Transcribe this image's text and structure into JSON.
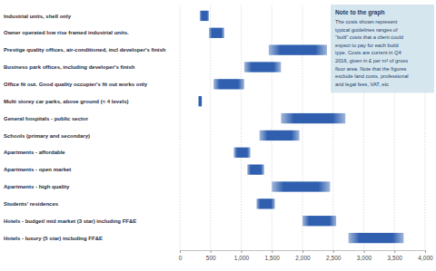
{
  "chart_data": {
    "type": "bar",
    "orientation": "horizontal",
    "categories": [
      "Industrial units, shell only",
      "Owner operated low rise framed industrial units.",
      "Prestige quality offices,  air-conditioned, incl developer's finish",
      "Business park offices, including developer's finish",
      "Office fit out.  Good quality occupier's fit out works only",
      "Multi storey car parks, above ground (< 4 levels)",
      "General hospitals - public sector",
      "Schools (primary and secondary)",
      "Apartments - affordable",
      "Apartments - open market",
      "Apartments - high quality",
      "Students' residences",
      "Hotels - budget/ mid market (3 star) including FF&E",
      "Hotels - luxury (5 star) including FF&E"
    ],
    "values": [
      [
        325,
        475
      ],
      [
        475,
        725
      ],
      [
        1450,
        2400
      ],
      [
        1050,
        1650
      ],
      [
        550,
        1050
      ],
      [
        300,
        360
      ],
      [
        1650,
        2700
      ],
      [
        1300,
        1950
      ],
      [
        880,
        1150
      ],
      [
        1100,
        1375
      ],
      [
        1500,
        2450
      ],
      [
        1250,
        1550
      ],
      [
        2000,
        2550
      ],
      [
        2750,
        3650
      ]
    ],
    "color": "#2f5fae",
    "xlim": [
      0,
      4000
    ],
    "xticks": [
      0,
      500,
      {
        "value": 1000,
        "label": "1,000"
      },
      {
        "value": 1500,
        "label": "1,500"
      },
      {
        "value": 2000,
        "label": "2,000"
      },
      {
        "value": 2500,
        "label": "2,500"
      },
      {
        "value": 3000,
        "label": "3,000"
      },
      {
        "value": 3500,
        "label": "3,500"
      },
      {
        "value": 4000,
        "label": "4,000"
      }
    ],
    "grid": true,
    "annotation": {
      "title": "Note to the graph",
      "lines": [
        "The costs shown represent",
        "typical guidelines ranges of",
        "“built” costs that a client could",
        "expect to pay for each build",
        "type. Costs are current in Q4",
        "2016, given in £ per m² of gross",
        "floor area. Note that the figures",
        "exclude land costs, professional",
        "and legal fees, VAT, etc"
      ]
    }
  }
}
